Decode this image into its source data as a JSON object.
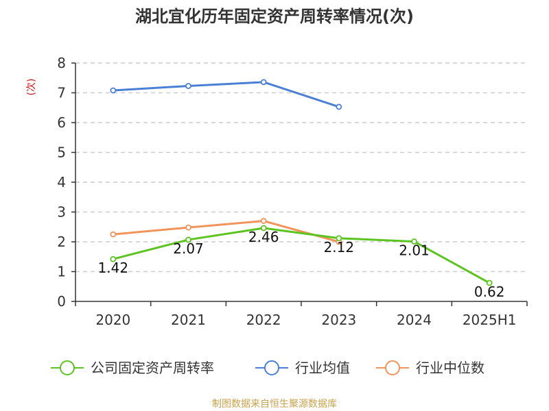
{
  "chart_data": {
    "type": "line",
    "title": "湖北宜化历年固定资产周转率情况(次)",
    "ylabel": "(次)",
    "xlabel": "",
    "categories": [
      "2020",
      "2021",
      "2022",
      "2023",
      "2024",
      "2025H1"
    ],
    "ylim": [
      0,
      8
    ],
    "yticks": [
      0,
      1,
      2,
      3,
      4,
      5,
      6,
      7,
      8
    ],
    "grid": true,
    "legend_position": "bottom",
    "series": [
      {
        "name": "公司固定资产周转率",
        "color": "#5cc421",
        "values": [
          1.42,
          2.07,
          2.46,
          2.12,
          2.01,
          0.62
        ],
        "labels": [
          "1.42",
          "2.07",
          "2.46",
          "2.12",
          "2.01",
          "0.62"
        ]
      },
      {
        "name": "行业均值",
        "color": "#4a7fd6",
        "values": [
          7.08,
          7.23,
          7.36,
          6.53,
          null,
          null
        ]
      },
      {
        "name": "行业中位数",
        "color": "#f2935a",
        "values": [
          2.25,
          2.48,
          2.7,
          2.0,
          null,
          null
        ]
      }
    ]
  },
  "source": "制图数据来自恒生聚源数据库"
}
